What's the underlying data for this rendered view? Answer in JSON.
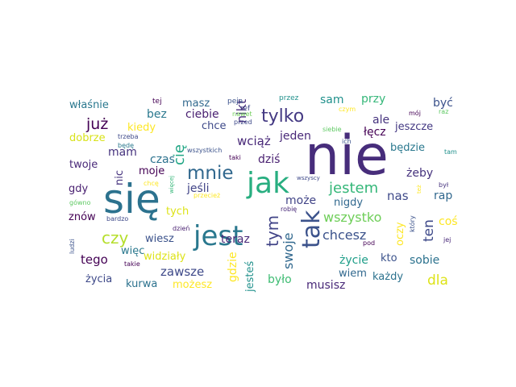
{
  "cloud": {
    "palette": [
      "#440154",
      "#3b528b",
      "#21918c",
      "#5ec962",
      "#fde725"
    ],
    "words": [
      {
        "text": "nie",
        "color": "#472d7b",
        "weight": 100
      },
      {
        "text": "się",
        "color": "#2c728e",
        "weight": 78
      },
      {
        "text": "jak",
        "color": "#28ae80",
        "weight": 60
      },
      {
        "text": "jest",
        "color": "#2a788e",
        "weight": 57
      },
      {
        "text": "tak",
        "color": "#3b528b",
        "weight": 47
      },
      {
        "text": "mnie",
        "color": "#31688e",
        "weight": 40
      },
      {
        "text": "tylko",
        "color": "#443983",
        "weight": 36
      },
      {
        "text": "tym",
        "color": "#414487",
        "weight": 33
      },
      {
        "text": "już",
        "color": "#440154",
        "weight": 30
      },
      {
        "text": "czy",
        "color": "#b5de2b",
        "weight": 30
      },
      {
        "text": "jestem",
        "color": "#35b779",
        "weight": 29
      },
      {
        "text": "wszystko",
        "color": "#6ece58",
        "weight": 27
      },
      {
        "text": "cię",
        "color": "#21a685",
        "weight": 27
      },
      {
        "text": "ten",
        "color": "#3e4989",
        "weight": 27
      },
      {
        "text": "dla",
        "color": "#dde318",
        "weight": 26
      },
      {
        "text": "swoje",
        "color": "#31688e",
        "weight": 25
      },
      {
        "text": "chcesz",
        "color": "#3b528b",
        "weight": 24
      },
      {
        "text": "nikt",
        "color": "#472d7b",
        "weight": 24
      },
      {
        "text": "wciąż",
        "color": "#482878",
        "weight": 24
      },
      {
        "text": "zawsze",
        "color": "#3e4989",
        "weight": 23
      },
      {
        "text": "gdzie",
        "color": "#fde725",
        "weight": 22
      },
      {
        "text": "tego",
        "color": "#440154",
        "weight": 22
      },
      {
        "text": "nas",
        "color": "#3e4989",
        "weight": 22
      },
      {
        "text": "mam",
        "color": "#46337e",
        "weight": 21
      },
      {
        "text": "bez",
        "color": "#2a788e",
        "weight": 21
      },
      {
        "text": "ciebie",
        "color": "#481f70",
        "weight": 21
      },
      {
        "text": "sam",
        "color": "#21918c",
        "weight": 21
      },
      {
        "text": "przy",
        "color": "#35b779",
        "weight": 21
      },
      {
        "text": "ale",
        "color": "#46337e",
        "weight": 21
      },
      {
        "text": "być",
        "color": "#3b528b",
        "weight": 21
      },
      {
        "text": "łęcz",
        "color": "#440154",
        "weight": 21
      },
      {
        "text": "życie",
        "color": "#1f9e89",
        "weight": 21
      },
      {
        "text": "sobie",
        "color": "#2c728e",
        "weight": 20
      },
      {
        "text": "kto",
        "color": "#3b528b",
        "weight": 20
      },
      {
        "text": "rap",
        "color": "#31688e",
        "weight": 20
      },
      {
        "text": "coś",
        "color": "#fde725",
        "weight": 20
      },
      {
        "text": "żeby",
        "color": "#46337e",
        "weight": 20
      },
      {
        "text": "oczy",
        "color": "#fde725",
        "weight": 19
      },
      {
        "text": "teraz",
        "color": "#482878",
        "weight": 19
      },
      {
        "text": "musisz",
        "color": "#482878",
        "weight": 19
      },
      {
        "text": "jesteś",
        "color": "#21918c",
        "weight": 19
      },
      {
        "text": "było",
        "color": "#3fbc73",
        "weight": 19
      },
      {
        "text": "czas",
        "color": "#2c728e",
        "weight": 19
      },
      {
        "text": "moje",
        "color": "#440154",
        "weight": 19
      },
      {
        "text": "jeśli",
        "color": "#414487",
        "weight": 19
      },
      {
        "text": "może",
        "color": "#414487",
        "weight": 19
      },
      {
        "text": "nigdy",
        "color": "#31688e",
        "weight": 19
      },
      {
        "text": "dziś",
        "color": "#481f70",
        "weight": 19
      },
      {
        "text": "jeden",
        "color": "#482878",
        "weight": 19
      },
      {
        "text": "będzie",
        "color": "#2a788e",
        "weight": 18
      },
      {
        "text": "jeszcze",
        "color": "#443983",
        "weight": 18
      },
      {
        "text": "masz",
        "color": "#31688e",
        "weight": 18
      },
      {
        "text": "chce",
        "color": "#3e4989",
        "weight": 18
      },
      {
        "text": "kiedy",
        "color": "#fde725",
        "weight": 18
      },
      {
        "text": "dobrze",
        "color": "#d8e219",
        "weight": 18
      },
      {
        "text": "twoje",
        "color": "#482878",
        "weight": 18
      },
      {
        "text": "gdy",
        "color": "#481f70",
        "weight": 18
      },
      {
        "text": "znów",
        "color": "#440154",
        "weight": 18
      },
      {
        "text": "nic",
        "color": "#46337e",
        "weight": 18
      },
      {
        "text": "tych",
        "color": "#dde318",
        "weight": 18
      },
      {
        "text": "wiesz",
        "color": "#3b528b",
        "weight": 18
      },
      {
        "text": "więc",
        "color": "#2a788e",
        "weight": 18
      },
      {
        "text": "widziały",
        "color": "#dde318",
        "weight": 18
      },
      {
        "text": "życia",
        "color": "#3e4989",
        "weight": 18
      },
      {
        "text": "kurwa",
        "color": "#2c728e",
        "weight": 18
      },
      {
        "text": "możesz",
        "color": "#fde725",
        "weight": 17
      },
      {
        "text": "wiem",
        "color": "#31688e",
        "weight": 17
      },
      {
        "text": "każdy",
        "color": "#2c728e",
        "weight": 17
      },
      {
        "text": "właśnie",
        "color": "#2a788e",
        "weight": 17
      },
      {
        "text": "tej",
        "color": "#440154",
        "weight": 12
      },
      {
        "text": "peja",
        "color": "#3b528b",
        "weight": 12
      },
      {
        "text": "ref",
        "color": "#3e4989",
        "weight": 12
      },
      {
        "text": "przez",
        "color": "#21918c",
        "weight": 12
      },
      {
        "text": "czym",
        "color": "#fde725",
        "weight": 11
      },
      {
        "text": "mój",
        "color": "#440154",
        "weight": 11
      },
      {
        "text": "raz",
        "color": "#5ec962",
        "weight": 11
      },
      {
        "text": "trzeba",
        "color": "#3e4989",
        "weight": 11
      },
      {
        "text": "nawet",
        "color": "#6ece58",
        "weight": 11
      },
      {
        "text": "przed",
        "color": "#3e4989",
        "weight": 11
      },
      {
        "text": "siebie",
        "color": "#5ec962",
        "weight": 11
      },
      {
        "text": "ich",
        "color": "#3b528b",
        "weight": 11
      },
      {
        "text": "tam",
        "color": "#21918c",
        "weight": 11
      },
      {
        "text": "będę",
        "color": "#2a788e",
        "weight": 11
      },
      {
        "text": "wszystkich",
        "color": "#3b528b",
        "weight": 11
      },
      {
        "text": "taki",
        "color": "#440154",
        "weight": 11
      },
      {
        "text": "wszyscy",
        "color": "#3e4989",
        "weight": 10
      },
      {
        "text": "był",
        "color": "#46337e",
        "weight": 11
      },
      {
        "text": "chcę",
        "color": "#fde725",
        "weight": 11
      },
      {
        "text": "więcej",
        "color": "#35b779",
        "weight": 10
      },
      {
        "text": "przecież",
        "color": "#fde725",
        "weight": 11
      },
      {
        "text": "gówno",
        "color": "#5ec962",
        "weight": 11
      },
      {
        "text": "robię",
        "color": "#482878",
        "weight": 11
      },
      {
        "text": "też",
        "color": "#fde725",
        "weight": 10
      },
      {
        "text": "dzień",
        "color": "#481f70",
        "weight": 11
      },
      {
        "text": "który",
        "color": "#3b528b",
        "weight": 11
      },
      {
        "text": "bardzo",
        "color": "#3e4989",
        "weight": 11
      },
      {
        "text": "pod",
        "color": "#440154",
        "weight": 11
      },
      {
        "text": "jej",
        "color": "#482878",
        "weight": 11
      },
      {
        "text": "ludzi",
        "color": "#3b528b",
        "weight": 11
      },
      {
        "text": "takie",
        "color": "#440154",
        "weight": 11
      }
    ]
  }
}
